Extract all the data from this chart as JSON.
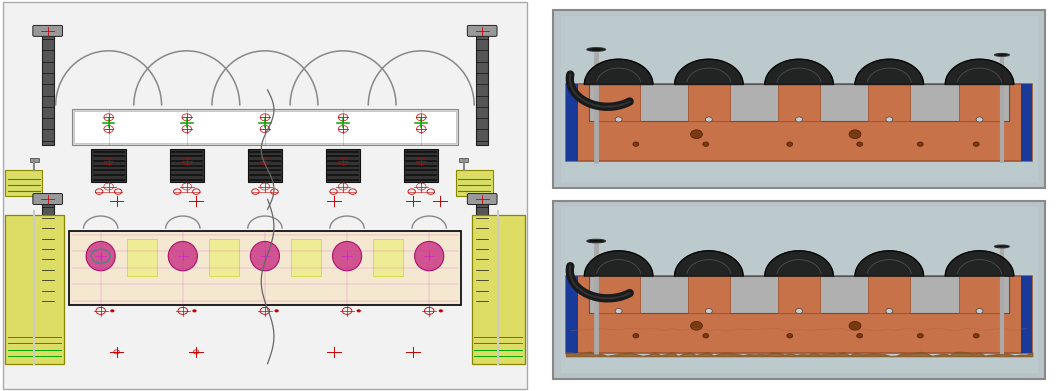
{
  "figure_width": 10.64,
  "figure_height": 3.91,
  "dpi": 100,
  "bg_color": "#ffffff",
  "copper_color": "#c8724a",
  "copper_shadow": "#a05530",
  "blue_tape": "#1a3a99",
  "rubber_hose": "#1a1a1a",
  "rubber_inner": "#555555",
  "silver_plate": "#b0b0b0",
  "silver_dark": "#888888",
  "knob_color": "#111111",
  "rod_color": "#999999",
  "photo_bg": "#b8c8cc",
  "photo_border": "#cccccc",
  "drawing_bg": "#f2f2f2",
  "drawing_border": "#aaaaaa",
  "arch_color": "#888888",
  "crosshair_color": "#cc0000",
  "green_cross": "#00aa00",
  "magenta_color": "#cc22cc",
  "yellow_fill": "#dddd44",
  "screw_dark": "#222222",
  "screw_mid": "#555555",
  "screw_light": "#999999",
  "pink_oval": "#e0558a",
  "pink_oval_fill": "#cc4488",
  "teal_oval": "#448888",
  "side_bracket": "#dddd66"
}
